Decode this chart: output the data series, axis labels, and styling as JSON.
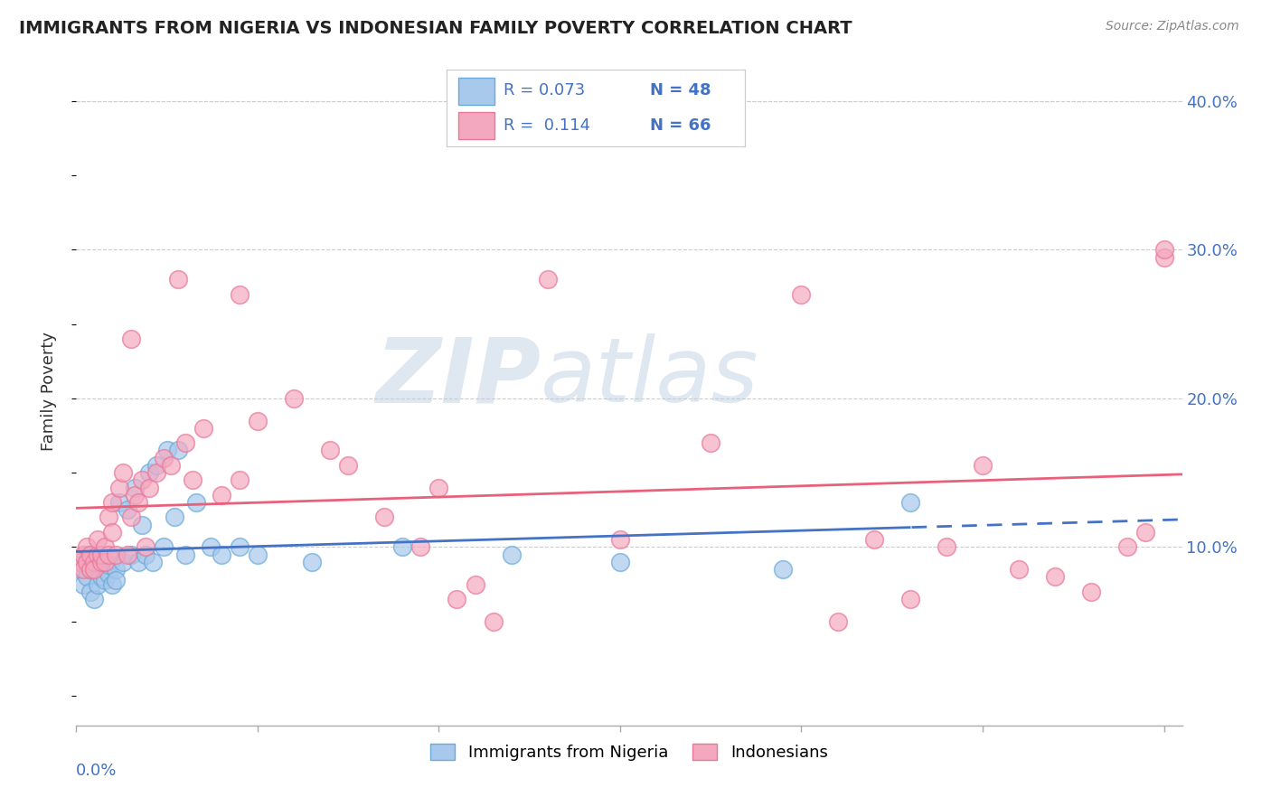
{
  "title": "IMMIGRANTS FROM NIGERIA VS INDONESIAN FAMILY POVERTY CORRELATION CHART",
  "source": "Source: ZipAtlas.com",
  "ylabel": "Family Poverty",
  "ytick_vals": [
    0.1,
    0.2,
    0.3,
    0.4
  ],
  "xlim": [
    0.0,
    0.305
  ],
  "ylim": [
    -0.02,
    0.43
  ],
  "color_nigeria": "#A8C8EC",
  "color_indonesia": "#F4A8C0",
  "color_nigeria_edge": "#6AAAD8",
  "color_indonesia_edge": "#E87898",
  "color_nigeria_line": "#4472C4",
  "color_indonesia_line": "#E8607A",
  "watermark_zip": "ZIP",
  "watermark_atlas": "atlas",
  "background_color": "#FFFFFF",
  "grid_color": "#CCCCCC",
  "nigeria_x": [
    0.001,
    0.002,
    0.002,
    0.003,
    0.003,
    0.004,
    0.004,
    0.005,
    0.005,
    0.006,
    0.006,
    0.007,
    0.007,
    0.008,
    0.008,
    0.009,
    0.009,
    0.01,
    0.01,
    0.011,
    0.011,
    0.012,
    0.013,
    0.014,
    0.015,
    0.016,
    0.017,
    0.018,
    0.019,
    0.02,
    0.021,
    0.022,
    0.024,
    0.025,
    0.027,
    0.028,
    0.03,
    0.033,
    0.037,
    0.04,
    0.045,
    0.05,
    0.065,
    0.09,
    0.12,
    0.15,
    0.195,
    0.23
  ],
  "nigeria_y": [
    0.085,
    0.09,
    0.075,
    0.095,
    0.08,
    0.085,
    0.07,
    0.09,
    0.065,
    0.085,
    0.075,
    0.08,
    0.09,
    0.085,
    0.078,
    0.082,
    0.088,
    0.075,
    0.092,
    0.085,
    0.078,
    0.13,
    0.09,
    0.125,
    0.095,
    0.14,
    0.09,
    0.115,
    0.095,
    0.15,
    0.09,
    0.155,
    0.1,
    0.165,
    0.12,
    0.165,
    0.095,
    0.13,
    0.1,
    0.095,
    0.1,
    0.095,
    0.09,
    0.1,
    0.095,
    0.09,
    0.085,
    0.13
  ],
  "indonesia_x": [
    0.001,
    0.002,
    0.002,
    0.003,
    0.003,
    0.004,
    0.004,
    0.005,
    0.005,
    0.006,
    0.006,
    0.007,
    0.007,
    0.008,
    0.008,
    0.009,
    0.009,
    0.01,
    0.01,
    0.011,
    0.012,
    0.013,
    0.014,
    0.015,
    0.015,
    0.016,
    0.017,
    0.018,
    0.019,
    0.02,
    0.022,
    0.024,
    0.026,
    0.028,
    0.03,
    0.032,
    0.035,
    0.04,
    0.045,
    0.05,
    0.06,
    0.07,
    0.075,
    0.085,
    0.095,
    0.1,
    0.105,
    0.11,
    0.115,
    0.13,
    0.15,
    0.175,
    0.2,
    0.21,
    0.22,
    0.23,
    0.24,
    0.25,
    0.26,
    0.27,
    0.28,
    0.29,
    0.295,
    0.3,
    0.045,
    0.3
  ],
  "indonesia_y": [
    0.09,
    0.095,
    0.085,
    0.1,
    0.09,
    0.095,
    0.085,
    0.09,
    0.085,
    0.095,
    0.105,
    0.09,
    0.095,
    0.1,
    0.09,
    0.12,
    0.095,
    0.13,
    0.11,
    0.095,
    0.14,
    0.15,
    0.095,
    0.12,
    0.24,
    0.135,
    0.13,
    0.145,
    0.1,
    0.14,
    0.15,
    0.16,
    0.155,
    0.28,
    0.17,
    0.145,
    0.18,
    0.135,
    0.145,
    0.185,
    0.2,
    0.165,
    0.155,
    0.12,
    0.1,
    0.14,
    0.065,
    0.075,
    0.05,
    0.28,
    0.105,
    0.17,
    0.27,
    0.05,
    0.105,
    0.065,
    0.1,
    0.155,
    0.085,
    0.08,
    0.07,
    0.1,
    0.11,
    0.295,
    0.27,
    0.3
  ]
}
